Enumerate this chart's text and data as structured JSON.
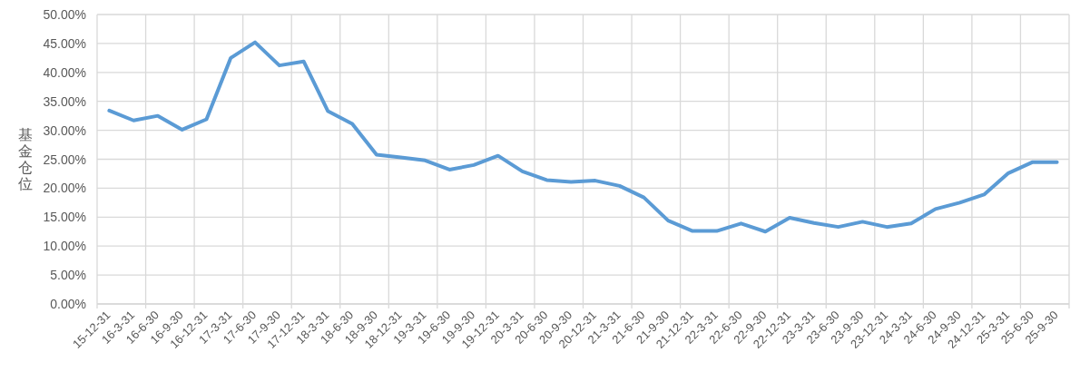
{
  "chart_data": {
    "type": "line",
    "ylabel": "基金仓位",
    "categories": [
      "15-12-31",
      "16-3-31",
      "16-6-30",
      "16-9-30",
      "16-12-31",
      "17-3-31",
      "17-6-30",
      "17-9-30",
      "17-12-31",
      "18-3-31",
      "18-6-30",
      "18-9-30",
      "18-12-31",
      "19-3-31",
      "19-6-30",
      "19-9-30",
      "19-12-31",
      "20-3-31",
      "20-6-30",
      "20-9-30",
      "20-12-31",
      "21-3-31",
      "21-6-30",
      "21-9-30",
      "21-12-31",
      "22-3-31",
      "22-6-30",
      "22-9-30",
      "22-12-31",
      "23-3-31",
      "23-6-30",
      "23-9-30",
      "23-12-31",
      "24-3-31",
      "24-6-30",
      "24-9-30",
      "24-12-31",
      "25-3-31",
      "25-6-30",
      "25-9-30"
    ],
    "series": [
      {
        "color": "#5b9bd5",
        "values": [
          33.4,
          31.7,
          32.5,
          30.1,
          31.9,
          42.5,
          45.2,
          41.2,
          41.9,
          33.3,
          31.1,
          25.8,
          25.3,
          24.8,
          23.2,
          24.0,
          25.6,
          22.9,
          21.4,
          21.1,
          21.3,
          20.4,
          18.4,
          14.4,
          12.6,
          12.6,
          13.9,
          12.5,
          14.9,
          14.0,
          13.3,
          14.2,
          13.3,
          13.9,
          16.4,
          17.5,
          18.9,
          22.6,
          24.5,
          24.5
        ]
      }
    ],
    "ylim": [
      0,
      50
    ],
    "yticks": [
      {
        "value": 0,
        "label": "0.00%"
      },
      {
        "value": 5,
        "label": "5.00%"
      },
      {
        "value": 10,
        "label": "10.00%"
      },
      {
        "value": 15,
        "label": "15.00%"
      },
      {
        "value": 20,
        "label": "20.00%"
      },
      {
        "value": 25,
        "label": "25.00%"
      },
      {
        "value": 30,
        "label": "30.00%"
      },
      {
        "value": 35,
        "label": "35.00%"
      },
      {
        "value": 40,
        "label": "40.00%"
      },
      {
        "value": 45,
        "label": "45.00%"
      },
      {
        "value": 50,
        "label": "50.00%"
      }
    ],
    "grid": true,
    "marker": "none",
    "line_style": "solid"
  }
}
